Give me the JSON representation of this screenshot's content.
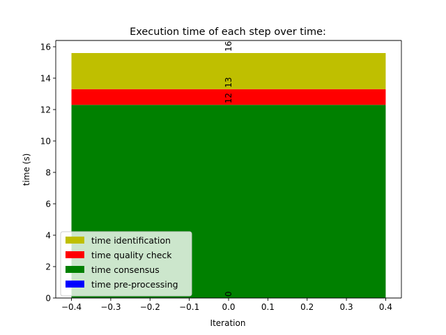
{
  "chart_data": {
    "type": "bar",
    "stacked": true,
    "title": "Execution time of each step over time:",
    "xlabel": "Iteration",
    "ylabel": "time (s)",
    "xlim": [
      -0.44,
      0.44
    ],
    "ylim": [
      0,
      16.4
    ],
    "x_ticks": [
      -0.4,
      -0.3,
      -0.2,
      -0.1,
      0.0,
      0.1,
      0.2,
      0.3,
      0.4
    ],
    "x_tick_labels": [
      "−0.4",
      "−0.3",
      "−0.2",
      "−0.1",
      "0.0",
      "0.1",
      "0.2",
      "0.3",
      "0.4"
    ],
    "y_ticks": [
      0,
      2,
      4,
      6,
      8,
      10,
      12,
      14,
      16
    ],
    "y_tick_labels": [
      "0",
      "2",
      "4",
      "6",
      "8",
      "10",
      "12",
      "14",
      "16"
    ],
    "grid": false,
    "legend_position": "lower-left",
    "bar": {
      "x": 0,
      "width": 0.8
    },
    "series": [
      {
        "name": "time pre-processing",
        "value": 0.0,
        "color": "#0000ff",
        "label": "0"
      },
      {
        "name": "time consensus",
        "value": 12.3,
        "color": "#008000",
        "label": "12"
      },
      {
        "name": "time quality check",
        "value": 1.0,
        "color": "#ff0000",
        "label": "13"
      },
      {
        "name": "time identification",
        "value": 2.3,
        "color": "#bfbf00",
        "label": "16"
      }
    ],
    "legend_order": [
      "time identification",
      "time quality check",
      "time consensus",
      "time pre-processing"
    ]
  }
}
